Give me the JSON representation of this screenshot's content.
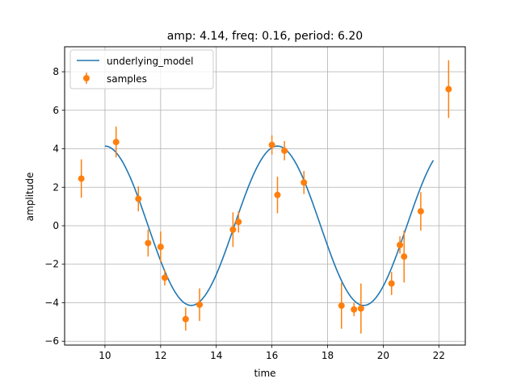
{
  "chart_data": {
    "type": "scatter",
    "title": "amp: 4.14, freq: 0.16, period: 6.20",
    "xlabel": "time",
    "ylabel": "amplitude",
    "xlim": [
      8.55,
      22.95
    ],
    "ylim": [
      -6.2,
      9.3
    ],
    "xticks": [
      10,
      12,
      14,
      16,
      18,
      20,
      22
    ],
    "yticks": [
      -6,
      -4,
      -2,
      0,
      2,
      4,
      6,
      8
    ],
    "grid": true,
    "legend_position": "top-left",
    "legend": [
      {
        "label": "underlying_model",
        "kind": "line",
        "color": "#1f77b4"
      },
      {
        "label": "samples",
        "kind": "errorbar-marker",
        "color": "#ff7f0e"
      }
    ],
    "model": {
      "name": "underlying_model",
      "color": "#1f77b4",
      "amplitude": 4.14,
      "frequency": 0.16,
      "period": 6.2,
      "x_start": 10.0,
      "x_end": 21.8,
      "peak_x": 10.0
    },
    "samples": {
      "name": "samples",
      "color": "#ff7f0e",
      "points": [
        {
          "x": 9.15,
          "y": 2.45,
          "err": 1.0
        },
        {
          "x": 10.4,
          "y": 4.35,
          "err": 0.8
        },
        {
          "x": 11.2,
          "y": 1.4,
          "err": 0.65
        },
        {
          "x": 11.55,
          "y": -0.9,
          "err": 0.7
        },
        {
          "x": 12.0,
          "y": -1.1,
          "err": 0.8
        },
        {
          "x": 12.15,
          "y": -2.7,
          "err": 0.4
        },
        {
          "x": 12.9,
          "y": -4.85,
          "err": 0.6
        },
        {
          "x": 13.4,
          "y": -4.1,
          "err": 0.85
        },
        {
          "x": 14.6,
          "y": -0.2,
          "err": 0.9
        },
        {
          "x": 14.8,
          "y": 0.2,
          "err": 0.55
        },
        {
          "x": 16.0,
          "y": 4.2,
          "err": 0.5
        },
        {
          "x": 16.2,
          "y": 1.6,
          "err": 0.95
        },
        {
          "x": 16.45,
          "y": 3.9,
          "err": 0.5
        },
        {
          "x": 17.15,
          "y": 2.25,
          "err": 0.6
        },
        {
          "x": 18.5,
          "y": -4.15,
          "err": 1.2
        },
        {
          "x": 18.95,
          "y": -4.35,
          "err": 0.35
        },
        {
          "x": 19.2,
          "y": -4.3,
          "err": 1.3
        },
        {
          "x": 20.3,
          "y": -3.0,
          "err": 0.6
        },
        {
          "x": 20.6,
          "y": -1.0,
          "err": 0.45
        },
        {
          "x": 20.75,
          "y": -1.6,
          "err": 1.35
        },
        {
          "x": 21.35,
          "y": 0.75,
          "err": 1.0
        },
        {
          "x": 22.35,
          "y": 7.1,
          "err": 1.5
        }
      ]
    }
  }
}
